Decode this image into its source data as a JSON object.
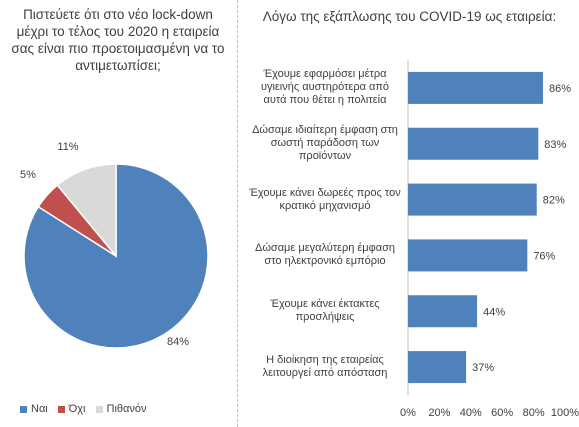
{
  "chart_data": [
    {
      "type": "pie",
      "title": "Πιστεύετε ότι στο νέο lock-down μέχρι το τέλος του 2020 η εταιρεία σας  είναι πιο προετοιμασμένη να το αντιμετωπίσει;",
      "categories": [
        "Ναι",
        "Όχι",
        "Πιθανόν"
      ],
      "values": [
        84,
        5,
        11
      ],
      "labels": [
        "84%",
        "5%",
        "11%"
      ],
      "colors": [
        "#4f81bd",
        "#c0504d",
        "#d9d9d9"
      ],
      "legend_position": "bottom"
    },
    {
      "type": "bar",
      "orientation": "horizontal",
      "title": "Λόγω της εξάπλωσης του COVID-19 ως εταιρεία:",
      "categories": [
        "Έχουμε εφαρμόσει μέτρα υγιεινής αυστηρότερα από αυτά που θέτει η πολιτεία",
        "Δώσαμε ιδιαίτερη έμφαση στη σωστή παράδοση των προϊόντων",
        "Έχουμε κάνει δωρεές προς τον κρατικό μηχανισμό",
        "Δώσαμε μεγαλύτερη έμφαση στο ηλεκτρονικό εμπόριο",
        "Έχουμε κάνει έκτακτες προσλήψεις",
        "Η διοίκηση της εταιρείας λειτουργεί από απόσταση"
      ],
      "values": [
        86,
        83,
        82,
        76,
        44,
        37
      ],
      "labels": [
        "86%",
        "83%",
        "82%",
        "76%",
        "44%",
        "37%"
      ],
      "xlim": [
        0,
        100
      ],
      "xticks": [
        "0%",
        "20%",
        "40%",
        "60%",
        "80%",
        "100%"
      ],
      "color": "#4f81bd",
      "grid": false
    }
  ]
}
